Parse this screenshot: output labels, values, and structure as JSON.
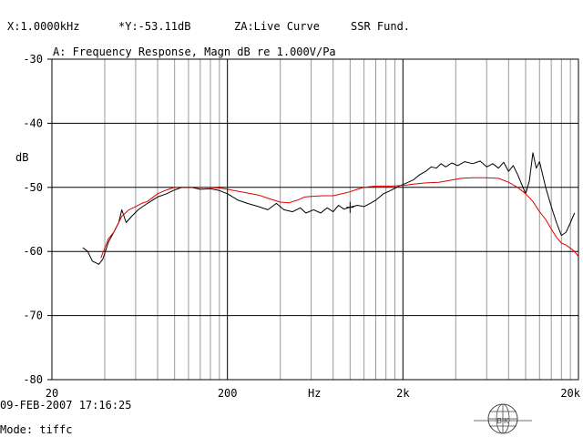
{
  "header": {
    "x_readout": "X:1.0000kHz",
    "y_readout": "*Y:-53.11dB",
    "za_mode": "ZA:Live Curve",
    "ssr": "SSR Fund."
  },
  "footer": {
    "timestamp": "09-FEB-2007 17:16:25",
    "mode": "Mode: tiffc",
    "logo_letters": "B K"
  },
  "chart_data": {
    "type": "line",
    "title": "A: Frequency Response, Magn dB re 1.000V/Pa",
    "ylabel": "dB",
    "xlabel": "Hz",
    "xscale": "log",
    "xlim": [
      20,
      20000
    ],
    "ylim": [
      -80,
      -30
    ],
    "grid": true,
    "x_tick_labels": [
      {
        "value": 20,
        "label": "20"
      },
      {
        "value": 200,
        "label": "200"
      },
      {
        "value": 2000,
        "label": "2k"
      },
      {
        "value": 20000,
        "label": "20k"
      }
    ],
    "y_tick_labels": [
      {
        "value": -30,
        "label": "-30"
      },
      {
        "value": -40,
        "label": "-40"
      },
      {
        "value": -50,
        "label": "-50"
      },
      {
        "value": -60,
        "label": "-60"
      },
      {
        "value": -70,
        "label": "-70"
      },
      {
        "value": -80,
        "label": "-80"
      }
    ],
    "cursor": {
      "x": 1000,
      "y": -53.11
    },
    "series": [
      {
        "color": "#000000",
        "points": [
          [
            30,
            -59.4
          ],
          [
            32,
            -60.0
          ],
          [
            34,
            -61.5
          ],
          [
            37,
            -62.0
          ],
          [
            39,
            -61.2
          ],
          [
            42,
            -58.5
          ],
          [
            45,
            -57.0
          ],
          [
            48,
            -55.5
          ],
          [
            50,
            -53.5
          ],
          [
            53,
            -55.5
          ],
          [
            57,
            -54.5
          ],
          [
            62,
            -53.5
          ],
          [
            70,
            -52.5
          ],
          [
            80,
            -51.5
          ],
          [
            90,
            -51.0
          ],
          [
            100,
            -50.4
          ],
          [
            110,
            -50.0
          ],
          [
            125,
            -50.0
          ],
          [
            140,
            -50.3
          ],
          [
            160,
            -50.2
          ],
          [
            180,
            -50.5
          ],
          [
            200,
            -51.0
          ],
          [
            230,
            -52.0
          ],
          [
            260,
            -52.5
          ],
          [
            300,
            -53.0
          ],
          [
            340,
            -53.5
          ],
          [
            380,
            -52.5
          ],
          [
            420,
            -53.5
          ],
          [
            470,
            -53.8
          ],
          [
            520,
            -53.2
          ],
          [
            560,
            -54.0
          ],
          [
            620,
            -53.5
          ],
          [
            680,
            -54.0
          ],
          [
            740,
            -53.2
          ],
          [
            800,
            -53.8
          ],
          [
            860,
            -52.8
          ],
          [
            920,
            -53.4
          ],
          [
            1000,
            -53.1
          ],
          [
            1100,
            -52.8
          ],
          [
            1200,
            -53.0
          ],
          [
            1300,
            -52.5
          ],
          [
            1400,
            -52.0
          ],
          [
            1550,
            -51.0
          ],
          [
            1700,
            -50.5
          ],
          [
            1900,
            -49.8
          ],
          [
            2100,
            -49.3
          ],
          [
            2300,
            -48.8
          ],
          [
            2500,
            -48.0
          ],
          [
            2700,
            -47.5
          ],
          [
            2900,
            -46.8
          ],
          [
            3100,
            -47.0
          ],
          [
            3300,
            -46.3
          ],
          [
            3500,
            -46.8
          ],
          [
            3800,
            -46.2
          ],
          [
            4100,
            -46.6
          ],
          [
            4500,
            -46.0
          ],
          [
            5000,
            -46.3
          ],
          [
            5500,
            -45.9
          ],
          [
            6000,
            -46.8
          ],
          [
            6500,
            -46.3
          ],
          [
            7000,
            -47.0
          ],
          [
            7500,
            -46.1
          ],
          [
            8000,
            -47.5
          ],
          [
            8500,
            -46.6
          ],
          [
            9000,
            -48.0
          ],
          [
            9500,
            -49.5
          ],
          [
            10000,
            -51.0
          ],
          [
            10500,
            -49.0
          ],
          [
            11000,
            -44.6
          ],
          [
            11500,
            -47.0
          ],
          [
            12000,
            -46.0
          ],
          [
            13000,
            -50.0
          ],
          [
            14000,
            -53.0
          ],
          [
            15000,
            -55.5
          ],
          [
            16000,
            -57.5
          ],
          [
            17000,
            -57.0
          ],
          [
            18000,
            -55.5
          ],
          [
            19000,
            -54.0
          ]
        ]
      },
      {
        "color": "#e00000",
        "points": [
          [
            38,
            -61.0
          ],
          [
            40,
            -59.5
          ],
          [
            42,
            -58.0
          ],
          [
            45,
            -57.0
          ],
          [
            48,
            -55.5
          ],
          [
            50,
            -54.5
          ],
          [
            55,
            -53.5
          ],
          [
            60,
            -53.0
          ],
          [
            65,
            -52.5
          ],
          [
            70,
            -52.2
          ],
          [
            80,
            -51.0
          ],
          [
            90,
            -50.4
          ],
          [
            100,
            -50.0
          ],
          [
            120,
            -50.0
          ],
          [
            150,
            -50.0
          ],
          [
            180,
            -50.1
          ],
          [
            200,
            -50.3
          ],
          [
            250,
            -50.8
          ],
          [
            300,
            -51.2
          ],
          [
            350,
            -51.8
          ],
          [
            400,
            -52.3
          ],
          [
            450,
            -52.4
          ],
          [
            500,
            -52.0
          ],
          [
            550,
            -51.5
          ],
          [
            600,
            -51.4
          ],
          [
            700,
            -51.3
          ],
          [
            800,
            -51.3
          ],
          [
            900,
            -51.0
          ],
          [
            1000,
            -50.7
          ],
          [
            1100,
            -50.3
          ],
          [
            1200,
            -50.0
          ],
          [
            1400,
            -49.8
          ],
          [
            1700,
            -49.8
          ],
          [
            2000,
            -49.7
          ],
          [
            2300,
            -49.5
          ],
          [
            2700,
            -49.3
          ],
          [
            3200,
            -49.2
          ],
          [
            3700,
            -48.9
          ],
          [
            4300,
            -48.6
          ],
          [
            5000,
            -48.5
          ],
          [
            6000,
            -48.5
          ],
          [
            7000,
            -48.6
          ],
          [
            8000,
            -49.2
          ],
          [
            9000,
            -50.0
          ],
          [
            10000,
            -51.0
          ],
          [
            11000,
            -52.2
          ],
          [
            12000,
            -53.8
          ],
          [
            13000,
            -55.0
          ],
          [
            14000,
            -56.5
          ],
          [
            15000,
            -57.8
          ],
          [
            16000,
            -58.7
          ],
          [
            17000,
            -59.0
          ],
          [
            18000,
            -59.5
          ],
          [
            19000,
            -60.0
          ],
          [
            20000,
            -60.8
          ]
        ]
      }
    ]
  }
}
